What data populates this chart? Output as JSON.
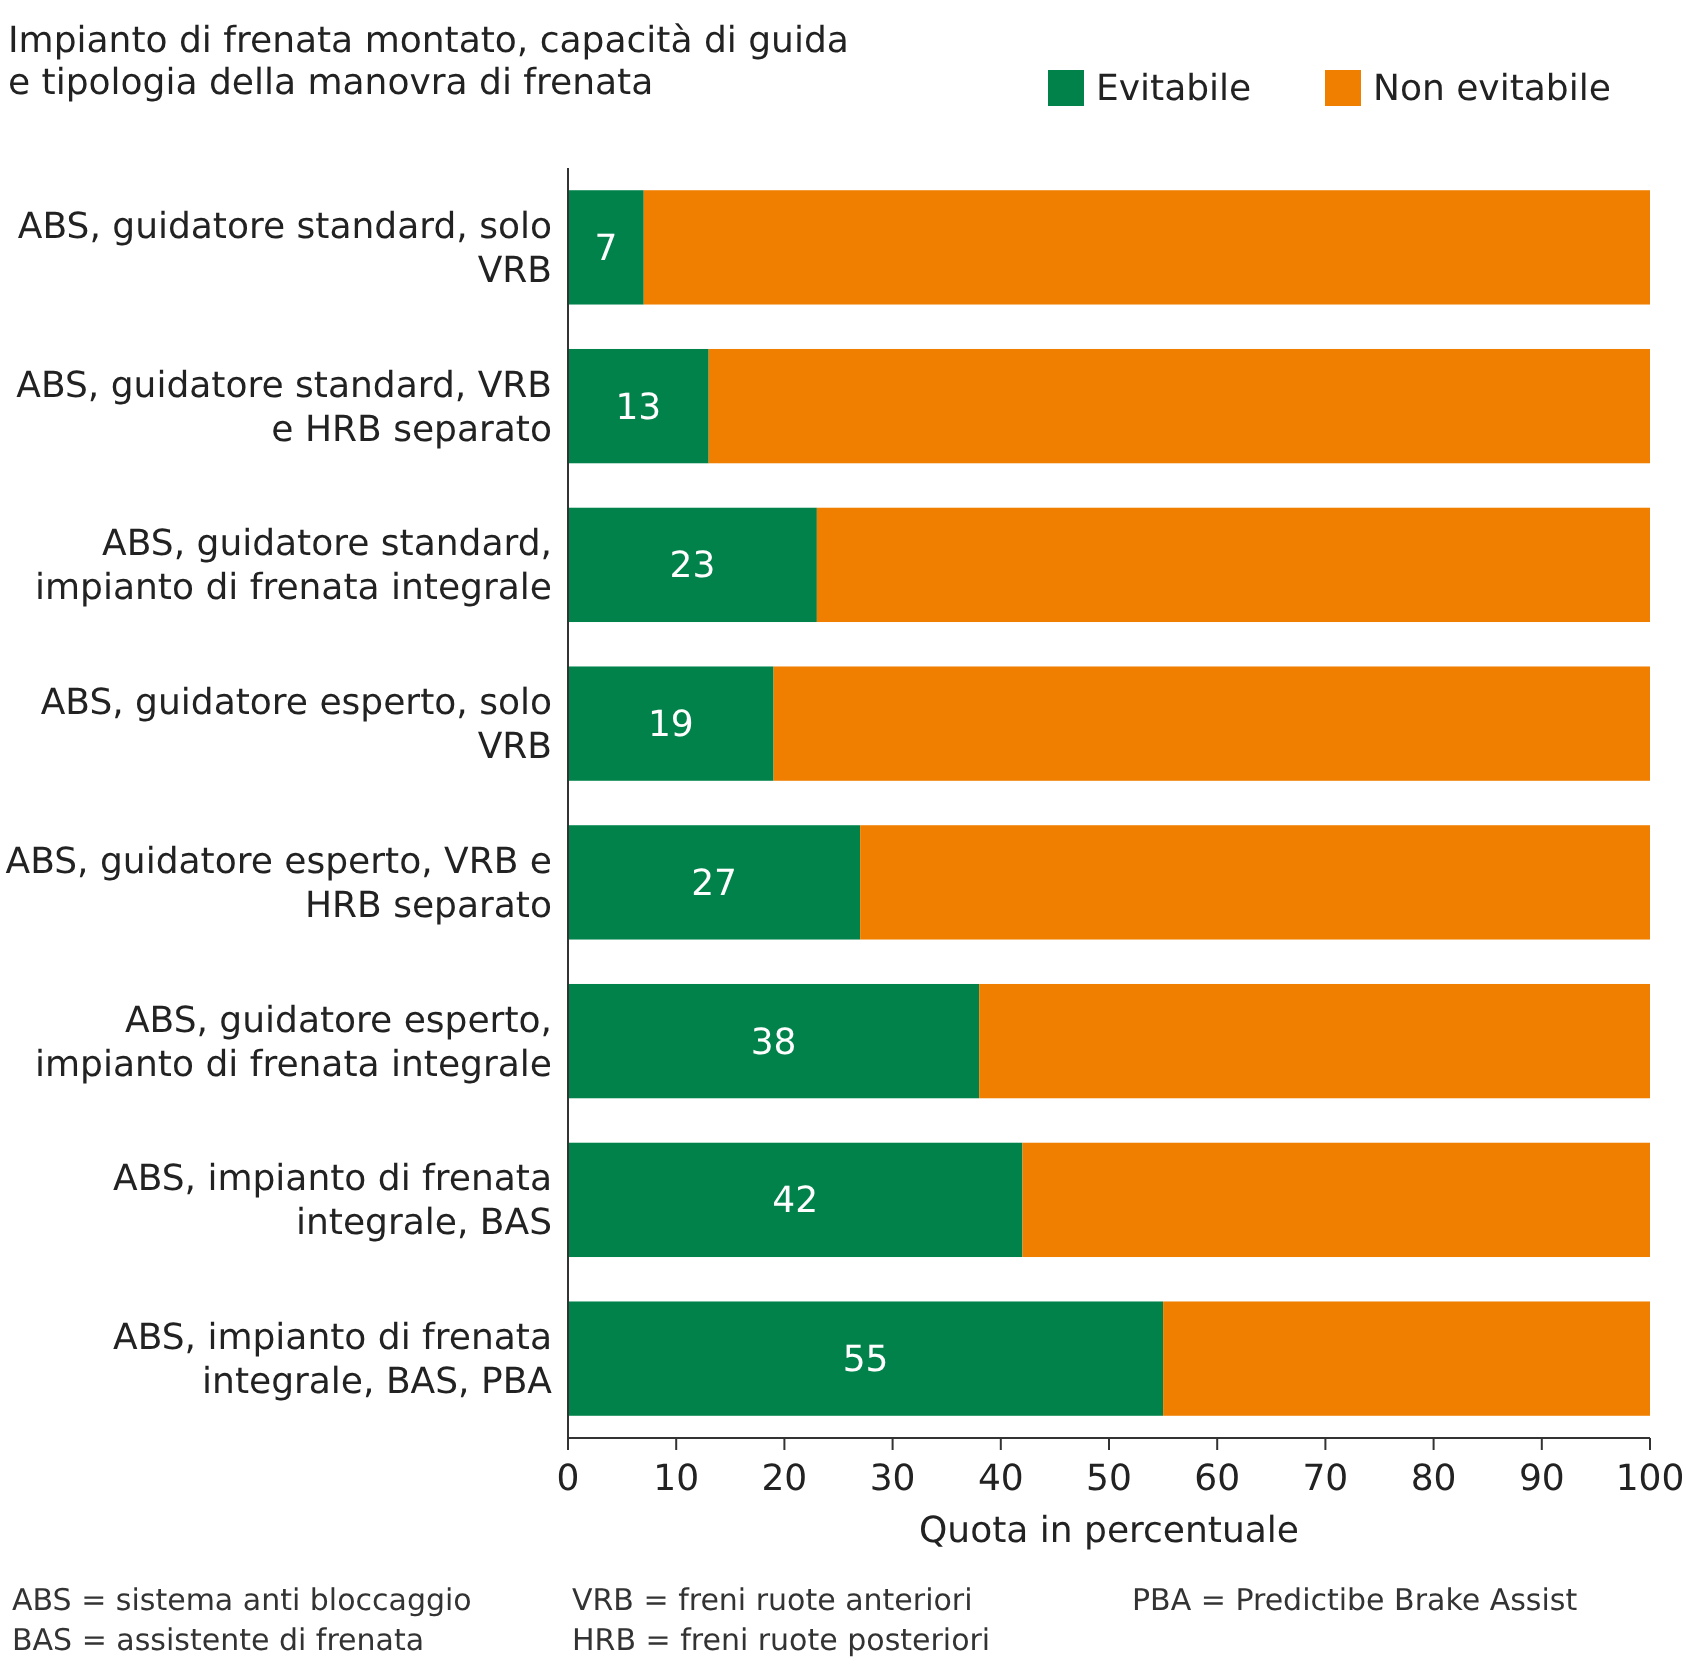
{
  "chart_data": {
    "type": "bar",
    "orientation": "horizontal",
    "stacked": true,
    "title": "Impianto di frenata montato, capacità di guida e tipologia della manovra di frenata",
    "xlabel": "Quota in percentuale",
    "categories": [
      "ABS, guidatore standard, solo VRB",
      "ABS, guidatore standard, VRB e HRB separato",
      "ABS, guidatore standard, impianto di frenata integrale",
      "ABS, guidatore esperto, solo VRB",
      "ABS, guidatore esperto, VRB e HRB separato",
      "ABS, guidatore esperto, impianto di frenata integrale",
      "ABS, impianto di frenata integrale, BAS",
      "ABS, impianto di frenata integrale, BAS, PBA"
    ],
    "series": [
      {
        "name": "Evitabile",
        "color": "#00824a",
        "values": [
          7,
          13,
          23,
          19,
          27,
          38,
          42,
          55
        ],
        "value_labels": [
          "7",
          "13",
          "23",
          "19",
          "27",
          "38",
          "42",
          "55"
        ]
      },
      {
        "name": "Non evitabile",
        "color": "#f07f00",
        "values": [
          93,
          87,
          77,
          81,
          73,
          62,
          58,
          45
        ]
      }
    ],
    "xlim": [
      0,
      100
    ],
    "xticks": [
      0,
      10,
      20,
      30,
      40,
      50,
      60,
      70,
      80,
      90,
      100
    ],
    "grid": false,
    "legend": "top right",
    "annotations": [
      "ABS = sistema anti bloccaggio",
      "BAS = assistente di frenata",
      "VRB = freni ruote anteriori",
      "HRB = freni ruote posteriori",
      "PBA = Predictibe Brake Assist"
    ]
  }
}
